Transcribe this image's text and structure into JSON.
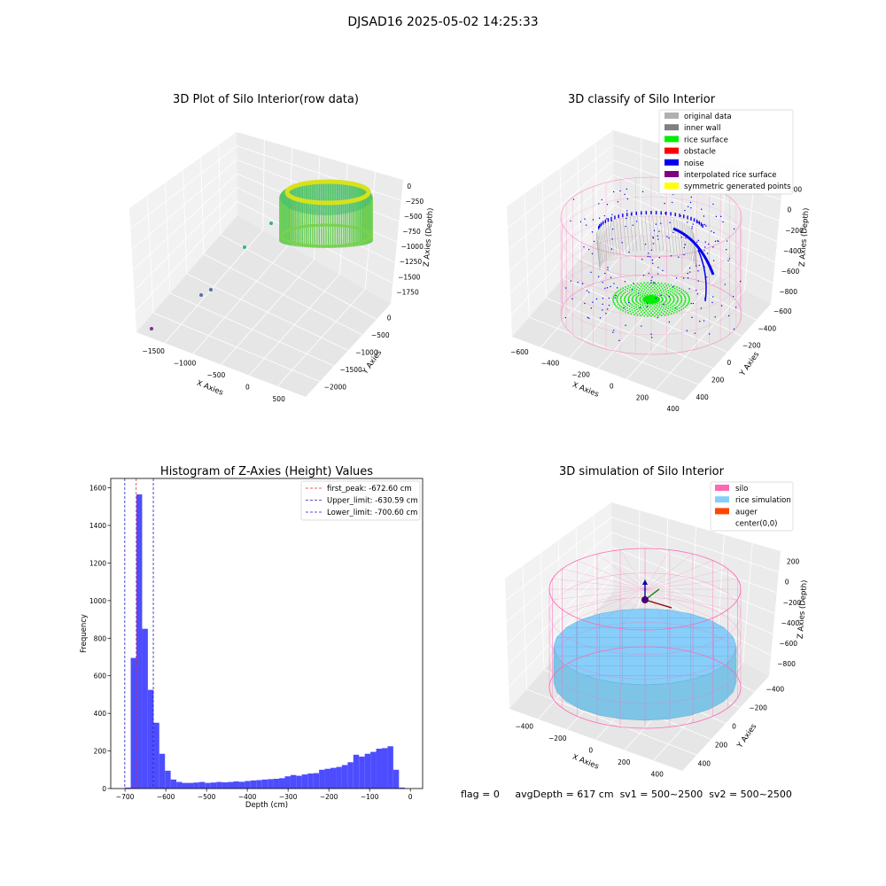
{
  "suptitle": "DJSAD16 2025-05-02 14:25:33",
  "status": {
    "flag": "flag = 0",
    "avg_depth": "avgDepth = 617 cm",
    "sv1": "sv1 = 500~2500",
    "sv2": "sv2 = 500~2500"
  },
  "colors": {
    "hist_bar": "#4d4dff",
    "first_peak": "#e03030",
    "limit": "#2020c0",
    "silo": "#ff69b4",
    "rice_sim": "#87cefa",
    "auger": "#ff4500",
    "original": "#b0b0b0",
    "inner_wall": "#808080",
    "rice_surface": "#00ee00",
    "obstacle": "#ff0000",
    "noise": "#0000ee",
    "interpolated": "#800080",
    "symmetric": "#ffff00"
  },
  "chart_data": [
    {
      "type": "scatter3d",
      "title": "3D Plot of Silo Interior(row data)",
      "xlabel": "X Axies",
      "ylabel": "Y Axies",
      "zlabel": "Z Axies (Depth)",
      "x_ticks": [
        "−1500",
        "−1000",
        "−500",
        "0",
        "500"
      ],
      "y_ticks": [
        "−2000",
        "−1500",
        "−1000",
        "−500",
        "0"
      ],
      "z_ticks": [
        "0",
        "−250",
        "−500",
        "−750",
        "−1000",
        "−1250",
        "−1500",
        "−1750"
      ],
      "xlim": [
        -1800,
        600
      ],
      "ylim": [
        -2200,
        200
      ],
      "zlim": [
        -1900,
        100
      ],
      "ring_surface": {
        "center_x": 0,
        "center_y": 0,
        "radius": 450,
        "z_top": -100,
        "z_bottom": -700
      },
      "outliers": [
        {
          "x": -1750,
          "y": -1900,
          "z": -1700
        },
        {
          "x": -1300,
          "y": -1100,
          "z": -1350
        },
        {
          "x": -1200,
          "y": -1300,
          "z": -1500
        },
        {
          "x": -900,
          "y": -700,
          "z": -800
        },
        {
          "x": -700,
          "y": -600,
          "z": -400
        }
      ]
    },
    {
      "type": "scatter3d",
      "title": "3D classify of Silo Interior",
      "xlabel": "X Axies",
      "ylabel": "Y Axies",
      "zlabel": "Z Axies (Depth)",
      "x_ticks": [
        "−600",
        "−400",
        "−200",
        "0",
        "200",
        "400"
      ],
      "y_ticks": [
        "−600",
        "−400",
        "−200",
        "0",
        "200",
        "400"
      ],
      "z_ticks": [
        "200",
        "0",
        "−200",
        "−400",
        "−600",
        "−800"
      ],
      "xlim": [
        -650,
        550
      ],
      "ylim": [
        -650,
        550
      ],
      "zlim": [
        -900,
        250
      ],
      "legend_position": "top-right",
      "legend": [
        {
          "label": "original data",
          "color": "#b0b0b0"
        },
        {
          "label": "inner wall",
          "color": "#808080"
        },
        {
          "label": "rice surface",
          "color": "#00ee00"
        },
        {
          "label": "obstacle",
          "color": "#ff0000"
        },
        {
          "label": "noise",
          "color": "#0000ee"
        },
        {
          "label": "interpolated rice surface",
          "color": "#800080"
        },
        {
          "label": "symmetric generated points",
          "color": "#ffff00"
        }
      ]
    },
    {
      "type": "bar",
      "title": "Histogram of Z-Axies (Height) Values",
      "xlabel": "Depth (cm)",
      "ylabel": "Frequency",
      "xlim": [
        -735,
        30
      ],
      "ylim": [
        0,
        1650
      ],
      "x_ticks": [
        -700,
        -600,
        -500,
        -400,
        -300,
        -200,
        -100,
        0
      ],
      "y_ticks": [
        0,
        200,
        400,
        600,
        800,
        1000,
        1200,
        1400,
        1600
      ],
      "bin_start": -700,
      "bin_width": 14,
      "values": [
        5,
        695,
        1565,
        850,
        525,
        350,
        185,
        95,
        48,
        35,
        30,
        30,
        32,
        35,
        30,
        32,
        35,
        33,
        35,
        38,
        36,
        40,
        43,
        45,
        48,
        50,
        52,
        55,
        65,
        72,
        68,
        75,
        80,
        82,
        100,
        105,
        110,
        115,
        125,
        140,
        180,
        170,
        185,
        195,
        212,
        215,
        225,
        100,
        5
      ],
      "legend_position": "top-right",
      "lines": [
        {
          "name": "first_peak: -672.60 cm",
          "x": -672.6,
          "color": "#e03030"
        },
        {
          "name": "Upper_limit: -630.59 cm",
          "x": -630.59,
          "color": "#2020c0"
        },
        {
          "name": "Lower_limit: -700.60 cm",
          "x": -700.6,
          "color": "#2020c0"
        }
      ]
    },
    {
      "type": "surface3d",
      "title": "3D simulation of Silo Interior",
      "xlabel": "X Axies",
      "ylabel": "Y Axies",
      "zlabel": "Z Axies (Depth)",
      "x_ticks": [
        "−400",
        "−200",
        "0",
        "200",
        "400"
      ],
      "y_ticks": [
        "−400",
        "−200",
        "0",
        "200",
        "400"
      ],
      "z_ticks": [
        "200",
        "0",
        "−200",
        "−400",
        "−600",
        "−800"
      ],
      "xlim": [
        -550,
        550
      ],
      "ylim": [
        -550,
        550
      ],
      "zlim": [
        -850,
        300
      ],
      "rice_depth": -617,
      "legend_position": "top-right",
      "legend": [
        {
          "label": "silo",
          "color": "#ff69b4"
        },
        {
          "label": "rice simulation",
          "color": "#87cefa"
        },
        {
          "label": "auger",
          "color": "#ff4500"
        },
        {
          "label": "center(0,0)",
          "color": ""
        }
      ]
    }
  ]
}
